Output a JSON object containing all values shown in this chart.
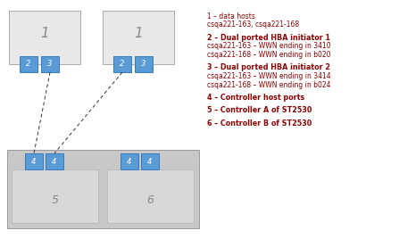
{
  "bg_color": "#ffffff",
  "legend_lines": [
    [
      "1 – data hosts",
      false
    ],
    [
      "csqa221-163, csqa221-168",
      false
    ],
    [
      "",
      false
    ],
    [
      "2 – Dual ported HBA initiator 1",
      true
    ],
    [
      "csqa221-163 – WWN ending in 3410",
      false
    ],
    [
      "csqa221-168 – WWN ending in b020",
      false
    ],
    [
      "",
      false
    ],
    [
      "3 – Dual ported HBA initiator 2",
      true
    ],
    [
      "csqa221-163 – WWN ending in 3414",
      false
    ],
    [
      "csqa221-168 – WWN ending in b024",
      false
    ],
    [
      "",
      false
    ],
    [
      "4 – Controller host ports",
      true
    ],
    [
      "",
      false
    ],
    [
      "5 – Controller A of ST2530",
      true
    ],
    [
      "",
      false
    ],
    [
      "6 – Controller B of ST2530",
      true
    ]
  ],
  "host_box_color": "#e8e8e8",
  "host_box_edge": "#aaaaaa",
  "hba_box_color": "#5b9bd5",
  "hba_box_edge": "#3a7abf",
  "controller_outer_color": "#c8c8c8",
  "controller_outer_edge": "#999999",
  "controller_inner_color": "#d8d8d8",
  "controller_inner_edge": "#bbbbbb",
  "port_box_color": "#5b9bd5",
  "port_box_edge": "#3a7abf",
  "text_color_legend": "#8b0000",
  "text_color_numbers": "#ffffff",
  "text_color_host_num": "#888888",
  "line_color": "#333333"
}
